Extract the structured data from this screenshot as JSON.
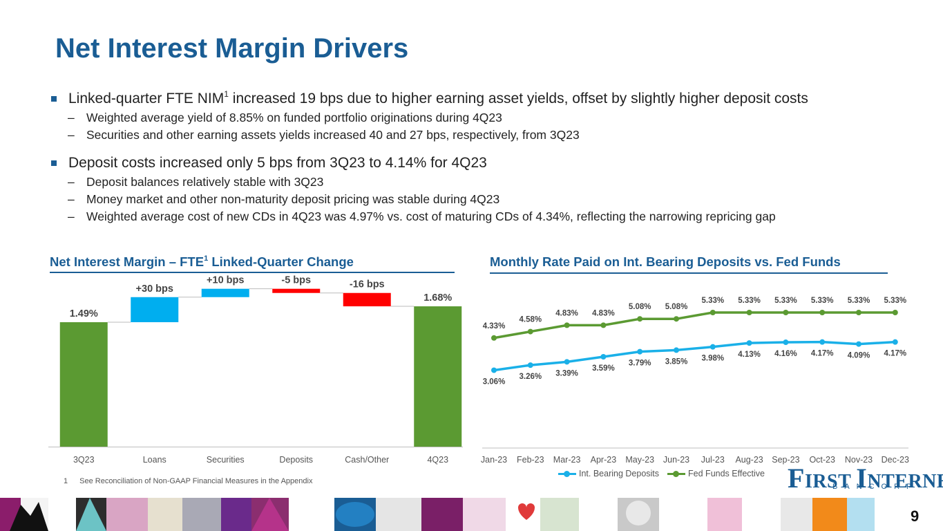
{
  "title": "Net Interest Margin Drivers",
  "bullets": [
    {
      "text_before": "Linked-quarter FTE NIM",
      "superscript": "1",
      "text_after": " increased 19 bps due to higher earning asset yields, offset by slightly higher deposit costs",
      "subs": [
        "Weighted average yield of 8.85% on funded portfolio originations during 4Q23",
        "Securities and other earning assets yields increased 40 and 27 bps, respectively, from 3Q23"
      ]
    },
    {
      "text": "Deposit costs increased only 5 bps from 3Q23 to 4.14% for 4Q23",
      "subs": [
        "Deposit balances relatively stable with 3Q23",
        "Money market and other non-maturity deposit pricing was stable during 4Q23",
        "Weighted average cost of new CDs in 4Q23 was 4.97% vs. cost of maturing CDs of 4.34%, reflecting the narrowing repricing gap"
      ]
    }
  ],
  "dash": "–",
  "chart_data": [
    {
      "type": "bar",
      "subtype": "waterfall",
      "title_before": "Net Interest Margin – FTE",
      "title_superscript": "1",
      "title_after": " Linked-Quarter Change",
      "categories": [
        "3Q23",
        "Loans",
        "Securities",
        "Deposits",
        "Cash/Other",
        "4Q23"
      ],
      "start_value": 1.49,
      "end_value": 1.68,
      "changes_bps": [
        30,
        10,
        -5,
        -16
      ],
      "labels": [
        "1.49%",
        "+30 bps",
        "+10 bps",
        "-5 bps",
        "-16 bps",
        "1.68%"
      ],
      "unit": "%",
      "colors": {
        "total": "#5b9a32",
        "increase": "#00aeef",
        "decrease": "#ff0000"
      }
    },
    {
      "type": "line",
      "title": "Monthly Rate Paid on Int. Bearing Deposits vs. Fed Funds",
      "categories": [
        "Jan-23",
        "Feb-23",
        "Mar-23",
        "Apr-23",
        "May-23",
        "Jun-23",
        "Jul-23",
        "Aug-23",
        "Sep-23",
        "Oct-23",
        "Nov-23",
        "Dec-23"
      ],
      "series": [
        {
          "name": "Int. Bearing Deposits",
          "values": [
            3.06,
            3.26,
            3.39,
            3.59,
            3.79,
            3.85,
            3.98,
            4.13,
            4.16,
            4.17,
            4.09,
            4.17
          ],
          "color": "#1ab0e8"
        },
        {
          "name": "Fed Funds Effective",
          "values": [
            4.33,
            4.58,
            4.83,
            4.83,
            5.08,
            5.08,
            5.33,
            5.33,
            5.33,
            5.33,
            5.33,
            5.33
          ],
          "color": "#5b9a32"
        }
      ],
      "ylim": [
        0,
        5.6
      ],
      "legend": "bottom"
    }
  ],
  "footnote": {
    "num": "1",
    "text": "See Reconciliation of Non-GAAP Financial Measures in the Appendix"
  },
  "logo": {
    "first_letter": "F",
    "first_rest": "IRST ",
    "second_letter": "I",
    "second_rest": "NTERNET",
    "bancorp": "BANCORP"
  },
  "page_number": "9",
  "colors": {
    "brand": "#1a5d94"
  }
}
